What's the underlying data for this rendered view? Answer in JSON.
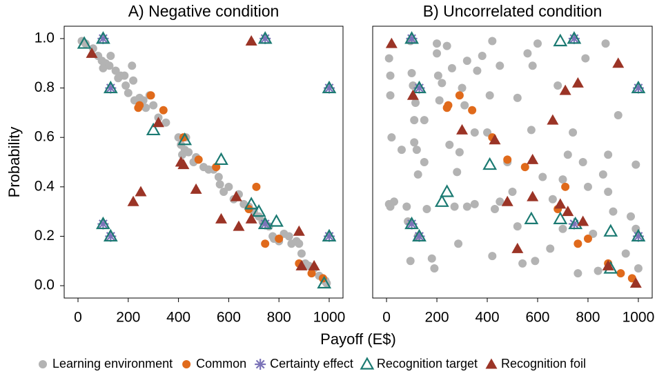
{
  "chart_data": [
    {
      "type": "scatter",
      "title": "A) Negative condition",
      "xlabel": "Payoff (E$)",
      "ylabel": "Probability",
      "legend": "bottom",
      "xlim": [
        -55,
        1055
      ],
      "ylim": [
        -0.05,
        1.05
      ],
      "xticks": [
        0,
        200,
        400,
        600,
        800,
        1000
      ],
      "yticks": [
        {
          "value": 0,
          "label": "0.0"
        },
        0.2,
        0.4,
        0.6,
        0.8,
        {
          "value": 1,
          "label": "1.0"
        }
      ],
      "series": [
        {
          "name": "Learning environment",
          "color": "#b3b3b3",
          "marker": "circle",
          "x": [
            15,
            30,
            60,
            80,
            95,
            100,
            110,
            125,
            130,
            150,
            160,
            170,
            185,
            190,
            200,
            215,
            220,
            225,
            245,
            260,
            270,
            285,
            300,
            320,
            350,
            400,
            410,
            415,
            425,
            430,
            440,
            460,
            470,
            500,
            520,
            540,
            560,
            565,
            580,
            600,
            620,
            640,
            660,
            680,
            700,
            720,
            735,
            760,
            775,
            780,
            800,
            820,
            840,
            850,
            870,
            880,
            890,
            905,
            920,
            940,
            960,
            980,
            985,
            990
          ],
          "values": [
            0.99,
            0.98,
            0.96,
            0.93,
            0.91,
            0.88,
            0.9,
            0.89,
            0.93,
            0.87,
            0.84,
            0.85,
            0.85,
            0.81,
            0.78,
            0.89,
            0.83,
            0.75,
            0.76,
            0.75,
            0.72,
            0.77,
            0.73,
            0.68,
            0.66,
            0.6,
            0.57,
            0.53,
            0.55,
            0.6,
            0.54,
            0.5,
            0.52,
            0.48,
            0.47,
            0.47,
            0.44,
            0.41,
            0.38,
            0.4,
            0.35,
            0.37,
            0.33,
            0.32,
            0.3,
            0.28,
            0.26,
            0.24,
            0.2,
            0.19,
            0.18,
            0.21,
            0.2,
            0.17,
            0.18,
            0.17,
            0.13,
            0.09,
            0.08,
            0.07,
            0.04,
            0.02,
            0.02,
            0.01
          ]
        },
        {
          "name": "Common",
          "color": "#e06a1b",
          "marker": "circle",
          "x": [
            240,
            245,
            290,
            340,
            420,
            480,
            550,
            680,
            710,
            745,
            800,
            880,
            930,
            975
          ],
          "values": [
            0.72,
            0.73,
            0.77,
            0.71,
            0.6,
            0.51,
            0.48,
            0.31,
            0.4,
            0.17,
            0.19,
            0.09,
            0.05,
            0.03
          ]
        },
        {
          "name": "Certainty effect",
          "color": "#7b73b8",
          "marker": "asterisk",
          "x": [
            100,
            130,
            745,
            1000,
            100,
            130,
            745,
            1000
          ],
          "values": [
            1,
            0.8,
            1,
            0.8,
            0.25,
            0.2,
            0.25,
            0.2
          ]
        },
        {
          "name": "Recognition target",
          "color": "#1b7a72",
          "marker": "triangle-open",
          "x": [
            25,
            100,
            130,
            300,
            425,
            570,
            690,
            720,
            745,
            790,
            980,
            1000,
            1000,
            100,
            130,
            745
          ],
          "values": [
            0.98,
            1,
            0.8,
            0.63,
            0.59,
            0.51,
            0.33,
            0.3,
            0.25,
            0.26,
            0.01,
            0.8,
            0.2,
            0.25,
            0.2,
            1
          ]
        },
        {
          "name": "Recognition foil",
          "color": "#9b3426",
          "marker": "triangle",
          "x": [
            55,
            320,
            410,
            420,
            470,
            570,
            630,
            640,
            690,
            690,
            880,
            890,
            940,
            220,
            250
          ],
          "values": [
            0.94,
            0.66,
            0.5,
            0.49,
            0.39,
            0.27,
            0.36,
            0.24,
            0.27,
            0.99,
            0.22,
            0.08,
            0.08,
            0.34,
            0.38
          ]
        }
      ]
    },
    {
      "type": "scatter",
      "title": "B) Uncorrelated condition",
      "xlim": [
        -55,
        1055
      ],
      "ylim": [
        -0.05,
        1.05
      ],
      "xticks": [
        0,
        200,
        400,
        600,
        800,
        1000
      ],
      "series": [
        {
          "color": "#b3b3b3",
          "marker": "circle",
          "x": [
            10,
            15,
            20,
            15,
            10,
            15,
            30,
            60,
            80,
            85,
            95,
            95,
            100,
            105,
            110,
            115,
            110,
            120,
            125,
            125,
            150,
            150,
            160,
            180,
            190,
            200,
            200,
            205,
            210,
            220,
            240,
            250,
            260,
            270,
            280,
            285,
            290,
            300,
            310,
            320,
            320,
            350,
            350,
            360,
            380,
            400,
            410,
            420,
            420,
            430,
            450,
            450,
            480,
            500,
            520,
            520,
            540,
            560,
            575,
            580,
            590,
            600,
            620,
            650,
            660,
            680,
            700,
            700,
            720,
            740,
            760,
            780,
            790,
            800,
            820,
            840,
            860,
            870,
            880,
            880,
            900,
            920,
            950,
            970,
            990,
            990,
            1000
          ],
          "values": [
            0.33,
            0.32,
            0.6,
            0.77,
            0.92,
            0.85,
            0.34,
            0.55,
            0.32,
            0.26,
            0.1,
            0.99,
            0.86,
            0.81,
            0.67,
            0.74,
            0.58,
            0.55,
            0.45,
            0.2,
            0.5,
            0.67,
            0.31,
            0.11,
            0.07,
            0.98,
            0.94,
            0.85,
            0.75,
            0.82,
            0.97,
            0.57,
            0.88,
            0.32,
            0.46,
            0.17,
            0.54,
            0.8,
            0.73,
            0.91,
            0.32,
            0.33,
            0.62,
            0.87,
            0.93,
            0.62,
            0.77,
            0.99,
            0.12,
            0.31,
            0.34,
            0.89,
            0.5,
            0.38,
            0.24,
            0.76,
            0.09,
            0.94,
            0.63,
            0.89,
            0.1,
            0.98,
            0.44,
            0.15,
            0.35,
            0.81,
            0.43,
            0.23,
            0.53,
            0.62,
            0.05,
            0.5,
            0.92,
            0.4,
            0.21,
            0.06,
            0.45,
            0.98,
            0.53,
            0.38,
            0.3,
            0.69,
            0.13,
            0.28,
            0.49,
            0.23,
            0.07
          ]
        },
        {
          "color": "#e06a1b",
          "marker": "circle",
          "x": [
            240,
            245,
            290,
            340,
            420,
            480,
            550,
            680,
            710,
            760,
            800,
            880,
            930,
            975
          ],
          "values": [
            0.72,
            0.73,
            0.77,
            0.71,
            0.6,
            0.51,
            0.48,
            0.31,
            0.4,
            0.17,
            0.19,
            0.09,
            0.05,
            0.03
          ]
        },
        {
          "color": "#7b73b8",
          "marker": "asterisk",
          "x": [
            100,
            130,
            745,
            1000,
            100,
            130,
            745,
            1000
          ],
          "values": [
            1,
            0.8,
            1,
            0.8,
            0.25,
            0.2,
            0.25,
            0.2
          ]
        },
        {
          "color": "#1b7a72",
          "marker": "triangle-open",
          "x": [
            100,
            130,
            690,
            745,
            1000,
            410,
            220,
            240,
            575,
            690,
            750,
            890,
            890,
            100,
            130,
            1000
          ],
          "values": [
            1,
            0.8,
            0.99,
            1,
            0.8,
            0.49,
            0.34,
            0.38,
            0.27,
            0.27,
            0.25,
            0.22,
            0.07,
            0.25,
            0.2,
            0.2
          ]
        },
        {
          "color": "#9b3426",
          "marker": "triangle",
          "x": [
            20,
            105,
            300,
            430,
            580,
            710,
            760,
            920,
            660,
            480,
            580,
            520,
            690,
            720,
            780,
            880,
            990
          ],
          "values": [
            0.98,
            0.77,
            0.63,
            0.59,
            0.51,
            0.79,
            0.82,
            0.9,
            0.67,
            0.34,
            0.36,
            0.15,
            0.33,
            0.3,
            0.26,
            0.08,
            0.01
          ]
        }
      ]
    }
  ]
}
